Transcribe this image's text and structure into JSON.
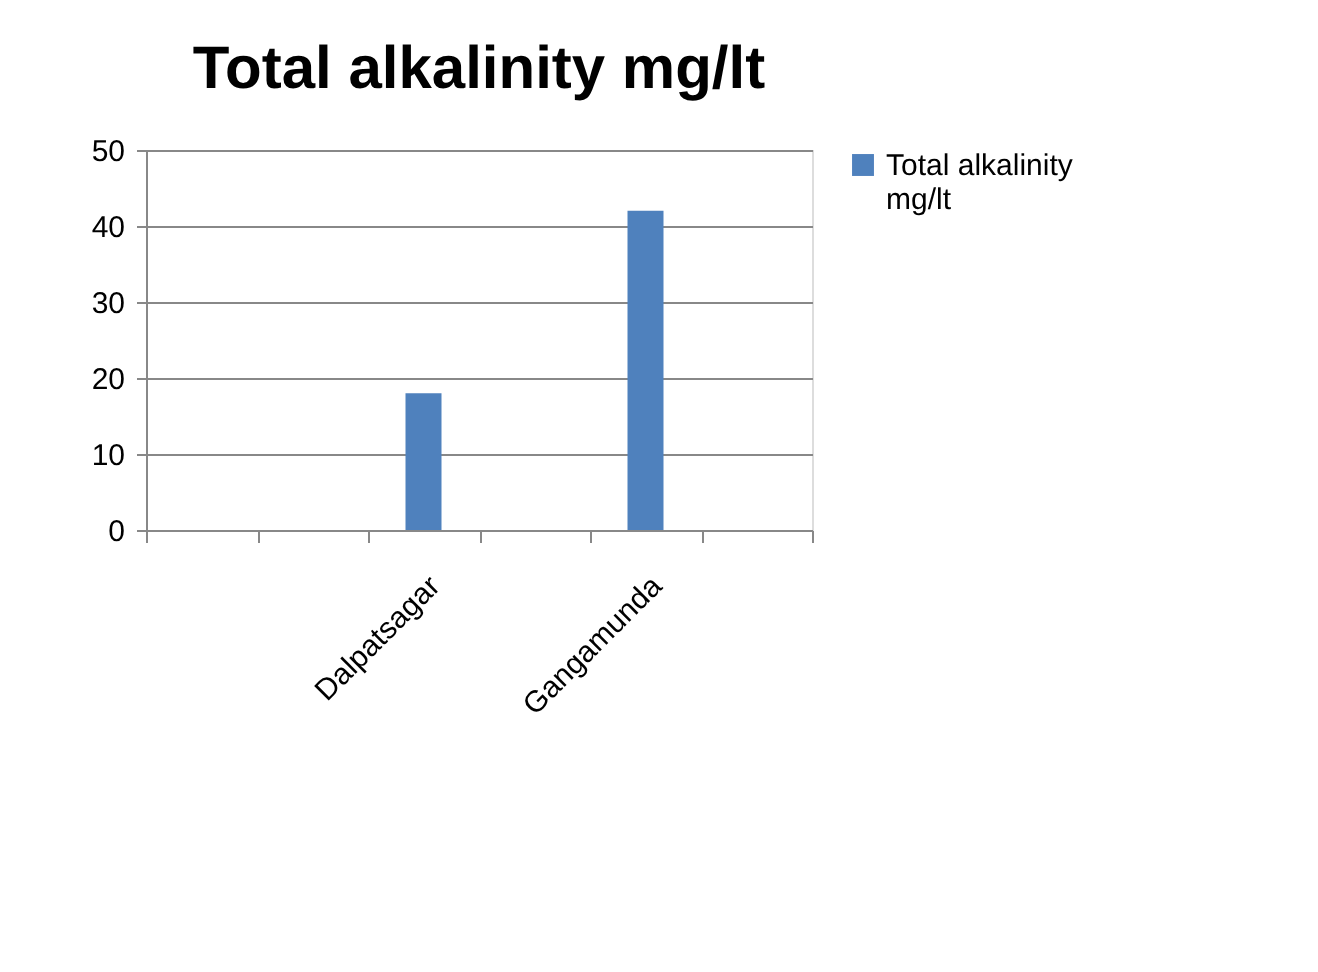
{
  "chart_data": {
    "type": "bar",
    "title": "Total alkalinity mg/lt",
    "categories": [
      null,
      null,
      "Dalpatsagar",
      null,
      "Gangamunda",
      null
    ],
    "series": [
      {
        "name": "Total alkalinity mg/lt",
        "color": "#4f81bd",
        "values": [
          null,
          null,
          18,
          null,
          42,
          null
        ]
      }
    ],
    "ylim": [
      0,
      50
    ],
    "yticks": [
      0,
      10,
      20,
      30,
      40,
      50
    ],
    "grid": "y",
    "legend": "right"
  }
}
